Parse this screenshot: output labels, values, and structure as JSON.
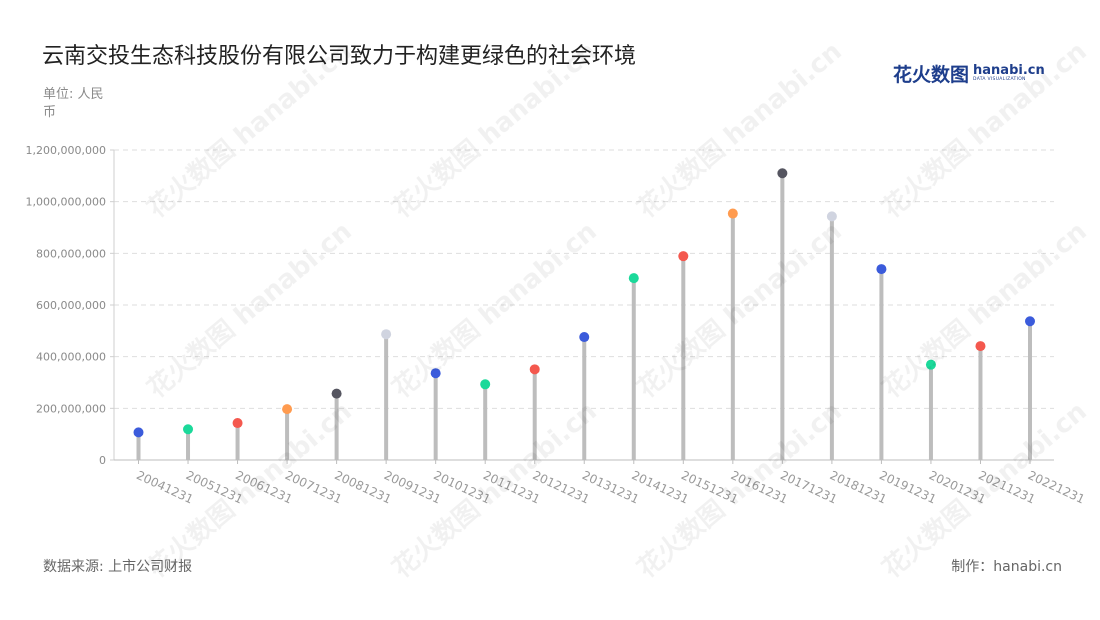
{
  "header": {
    "title": "云南交投生态科技股份有限公司致力于构建更绿色的社会环境",
    "unit_label": "单位: 人民币"
  },
  "logo": {
    "cn": "花火数图",
    "en": "hanabi.cn",
    "sub": "DATA VISUALIZATION"
  },
  "footer": {
    "source": "数据来源: 上市公司财报",
    "credit": "制作：hanabi.cn"
  },
  "chart_data": {
    "type": "lollipop",
    "categories": [
      "20041231",
      "20051231",
      "20061231",
      "20071231",
      "20081231",
      "20091231",
      "20101231",
      "20111231",
      "20121231",
      "20131231",
      "20141231",
      "20151231",
      "20161231",
      "20171231",
      "20181231",
      "20191231",
      "20201231",
      "20211231",
      "20221231"
    ],
    "values": [
      107000000,
      119000000,
      143000000,
      197000000,
      257000000,
      487000000,
      336000000,
      293000000,
      351000000,
      476000000,
      704000000,
      789000000,
      954000000,
      1110000000,
      943000000,
      739000000,
      369000000,
      441000000,
      537000000
    ],
    "point_colors": [
      "#3b5bdb",
      "#1bd99a",
      "#f4584e",
      "#ff9b4f",
      "#555560",
      "#d0d4e0",
      "#3b5bdb",
      "#1bd99a",
      "#f4584e",
      "#3b5bdb",
      "#1bd99a",
      "#f4584e",
      "#ff9b4f",
      "#555560",
      "#d0d4e0",
      "#3b5bdb",
      "#1bd99a",
      "#f4584e",
      "#3b5bdb"
    ],
    "stem_color": "#bdbdbd",
    "yticks": [
      "0",
      "200,000,000",
      "400,000,000",
      "600,000,000",
      "800,000,000",
      "1,000,000,000",
      "1,200,000,000"
    ],
    "ylim": [
      0,
      1200000000
    ],
    "grid": true
  }
}
